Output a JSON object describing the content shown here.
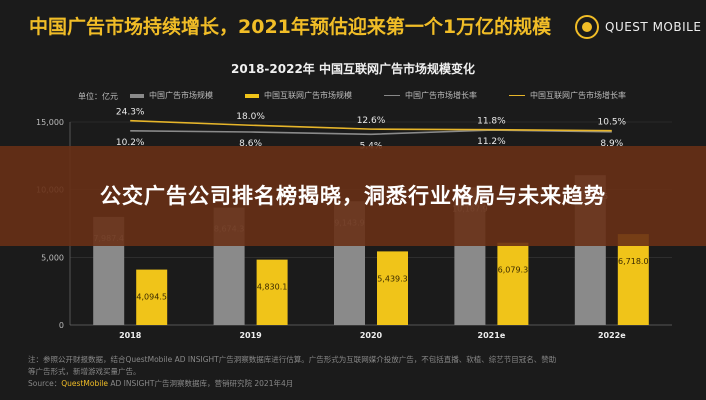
{
  "header": {
    "headline": "中国广告市场持续增长，2021年预估迎来第一个1万亿的规模",
    "logo_text": "QUEST MOBILE"
  },
  "overlay": {
    "banner_text": "公交广告公司排名榜揭晓，洞悉行业格局与未来趋势"
  },
  "notes": {
    "line1": "注：参照公开财报数据，结合QuestMobile AD INSIGHT广告洞察数据库进行估算。广告形式为互联网媒介投放广告，不包括直播、软植、综艺节目冠名、赞助",
    "line2": "等广告形式，新增游戏买量广告。",
    "source_prefix": "Source：",
    "source_brand": "QuestMobile",
    "source_rest": " AD INSIGHT广告洞察数据库，营销研究院 2021年4月"
  },
  "colors": {
    "background": "#1b1b1b",
    "accent": "#f1bd27",
    "bar_market": "#8a8a8a",
    "bar_internet": "#f0c419",
    "line_market": "#8a8a8a",
    "line_internet": "#e6b52a",
    "banner": "#683016"
  },
  "chart_data": {
    "type": "bar",
    "title": "2018-2022年 中国互联网广告市场规模变化",
    "unit_label": "单位：亿元",
    "categories": [
      "2018",
      "2019",
      "2020",
      "2021e",
      "2022e"
    ],
    "series": [
      {
        "name": "中国广告市场规模",
        "kind": "bar",
        "values": [
          7987.4,
          8674.3,
          9143.9,
          10167.9,
          11069.5
        ],
        "labels": [
          "7,987.4",
          "8,674.3",
          "9,143.9",
          "10,167.9",
          "11,069.5"
        ]
      },
      {
        "name": "中国互联网广告市场规模",
        "kind": "bar",
        "values": [
          4094.5,
          4830.1,
          5439.3,
          6079.3,
          6718.0
        ],
        "labels": [
          "4,094.5",
          "4,830.1",
          "5,439.3",
          "6,079.3",
          "6,718.0"
        ]
      },
      {
        "name": "中国广告市场增长率",
        "kind": "line",
        "values": [
          10.2,
          8.6,
          5.4,
          11.2,
          8.9
        ],
        "labels": [
          "10.2%",
          "8.6%",
          "5.4%",
          "11.2%",
          "8.9%"
        ]
      },
      {
        "name": "中国互联网广告市场增长率",
        "kind": "line",
        "values": [
          24.3,
          18.0,
          12.6,
          11.8,
          10.5
        ],
        "labels": [
          "24.3%",
          "18.0%",
          "12.6%",
          "11.8%",
          "10.5%"
        ]
      }
    ],
    "yticks": [
      "15,000",
      "10,000",
      "5,000",
      "0"
    ],
    "ylim": [
      0,
      15000
    ],
    "legend_position": "top",
    "grid": true
  }
}
